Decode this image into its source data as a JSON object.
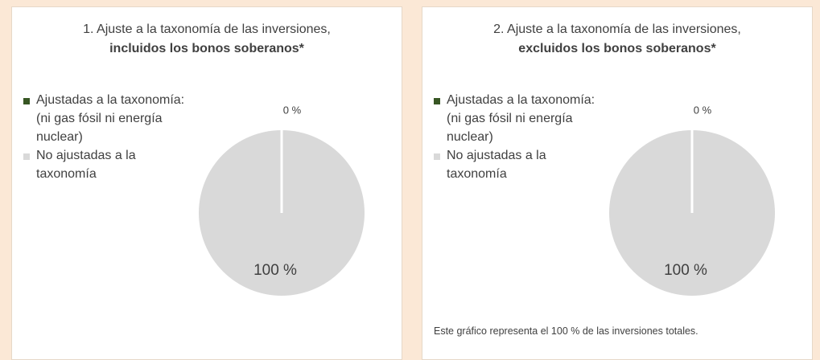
{
  "chart_data": [
    {
      "type": "pie",
      "title": "1. Ajuste a la taxonomía de las inversiones,",
      "subtitle": "incluidos los bonos soberanos*",
      "categories": [
        "Ajustadas a la taxonomía: (ni gas fósil ni energía nuclear)",
        "No ajustadas a la taxonomía"
      ],
      "values": [
        0,
        100
      ],
      "value_labels": [
        "0 %",
        "100 %"
      ],
      "colors": [
        "#375623",
        "#d9d9d9"
      ],
      "legend": "left"
    },
    {
      "type": "pie",
      "title": "2. Ajuste a la taxonomía de las inversiones,",
      "subtitle": "excluidos los bonos soberanos*",
      "categories": [
        "Ajustadas a la taxonomía: (ni gas fósil ni energía nuclear)",
        "No ajustadas a la taxonomía"
      ],
      "values": [
        0,
        100
      ],
      "value_labels": [
        "0 %",
        "100 %"
      ],
      "colors": [
        "#375623",
        "#d9d9d9"
      ],
      "legend": "left",
      "note": "Este gráfico representa el 100 % de las inversiones totales."
    }
  ]
}
